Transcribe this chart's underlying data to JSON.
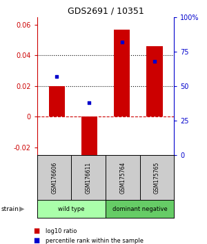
{
  "title": "GDS2691 / 10351",
  "samples": [
    "GSM176606",
    "GSM176611",
    "GSM175764",
    "GSM175765"
  ],
  "log10_ratio": [
    0.02,
    -0.025,
    0.057,
    0.046
  ],
  "percentile_rank": [
    0.57,
    0.38,
    0.82,
    0.68
  ],
  "bar_color": "#cc0000",
  "dot_color": "#0000cc",
  "ylim_left": [
    -0.025,
    0.065
  ],
  "ylim_right": [
    0.0,
    1.0
  ],
  "yticks_left": [
    -0.02,
    0.0,
    0.02,
    0.04,
    0.06
  ],
  "ytick_labels_left": [
    "-0.02",
    "0",
    "0.02",
    "0.04",
    "0.06"
  ],
  "yticks_right": [
    0.0,
    0.25,
    0.5,
    0.75,
    1.0
  ],
  "ytick_labels_right": [
    "0",
    "25",
    "50",
    "75",
    "100%"
  ],
  "hline_y_left": [
    0.0,
    0.02,
    0.04
  ],
  "hline_styles": [
    "dashed",
    "dotted",
    "dotted"
  ],
  "hline_colors": [
    "#cc0000",
    "#000000",
    "#000000"
  ],
  "groups": [
    {
      "label": "wild type",
      "samples": [
        0,
        1
      ],
      "color": "#aaffaa"
    },
    {
      "label": "dominant negative",
      "samples": [
        2,
        3
      ],
      "color": "#66cc66"
    }
  ],
  "group_row_label": "strain",
  "legend_red_label": "log10 ratio",
  "legend_blue_label": "percentile rank within the sample",
  "xlabel_color": "#cc0000",
  "ylabel_right_color": "#0000cc",
  "bar_width": 0.5,
  "bg_color": "#ffffff",
  "plot_bg_color": "#ffffff",
  "sample_box_color": "#cccccc",
  "title_fontsize": 9,
  "tick_fontsize": 7,
  "label_fontsize": 6.5
}
